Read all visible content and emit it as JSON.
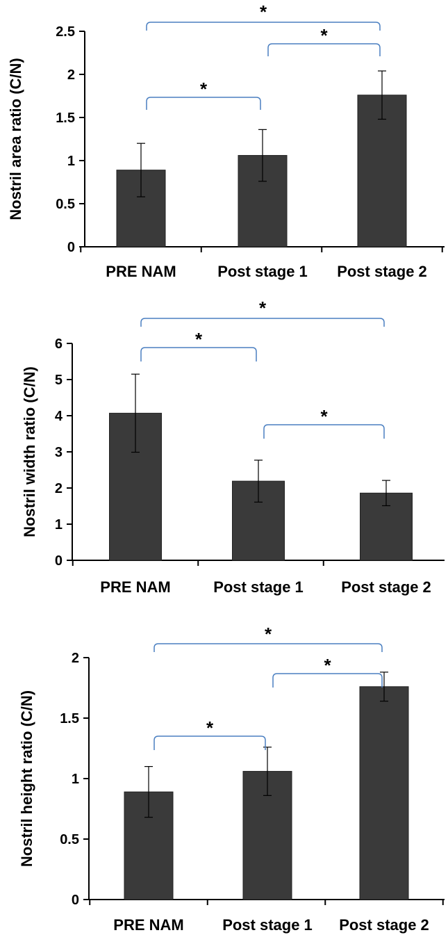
{
  "chart_data": [
    {
      "type": "bar",
      "categories": [
        "PRE NAM",
        "Post stage 1",
        "Post stage 2"
      ],
      "values": [
        0.89,
        1.06,
        1.76
      ],
      "errors": [
        0.31,
        0.3,
        0.28
      ],
      "ylabel": "Nostril area ratio (C/N)",
      "xlabel": "",
      "ylim": [
        0,
        2.5
      ],
      "yticks": [
        "0",
        "0.5",
        "1",
        "1.5",
        "2",
        "2.5"
      ],
      "significance": [
        {
          "from": 0,
          "to": 1,
          "label": "*"
        },
        {
          "from": 1,
          "to": 2,
          "label": "*"
        },
        {
          "from": 0,
          "to": 2,
          "label": "*"
        }
      ],
      "bar_color": "#3a3a3a",
      "bracket_color": "#4a7fc1"
    },
    {
      "type": "bar",
      "categories": [
        "PRE NAM",
        "Post stage 1",
        "Post stage 2"
      ],
      "values": [
        4.07,
        2.19,
        1.86
      ],
      "errors": [
        1.08,
        0.58,
        0.35
      ],
      "ylabel": "Nostril width ratio (C/N)",
      "xlabel": "",
      "ylim": [
        0,
        6
      ],
      "yticks": [
        "0",
        "1",
        "2",
        "3",
        "4",
        "5",
        "6"
      ],
      "significance": [
        {
          "from": 0,
          "to": 1,
          "label": "*"
        },
        {
          "from": 0,
          "to": 2,
          "label": "*"
        },
        {
          "from": 1,
          "to": 2,
          "label": "*"
        }
      ],
      "bar_color": "#3a3a3a",
      "bracket_color": "#4a7fc1"
    },
    {
      "type": "bar",
      "categories": [
        "PRE NAM",
        "Post stage 1",
        "Post stage 2"
      ],
      "values": [
        0.89,
        1.06,
        1.76
      ],
      "errors": [
        0.21,
        0.2,
        0.12
      ],
      "ylabel": "Nostril height ratio (C/N)",
      "xlabel": "",
      "ylim": [
        0,
        2
      ],
      "yticks": [
        "0",
        "0.5",
        "1",
        "1.5",
        "2"
      ],
      "significance": [
        {
          "from": 0,
          "to": 1,
          "label": "*"
        },
        {
          "from": 1,
          "to": 2,
          "label": "*"
        },
        {
          "from": 0,
          "to": 2,
          "label": "*"
        }
      ],
      "bar_color": "#3a3a3a",
      "bracket_color": "#4a7fc1"
    }
  ]
}
